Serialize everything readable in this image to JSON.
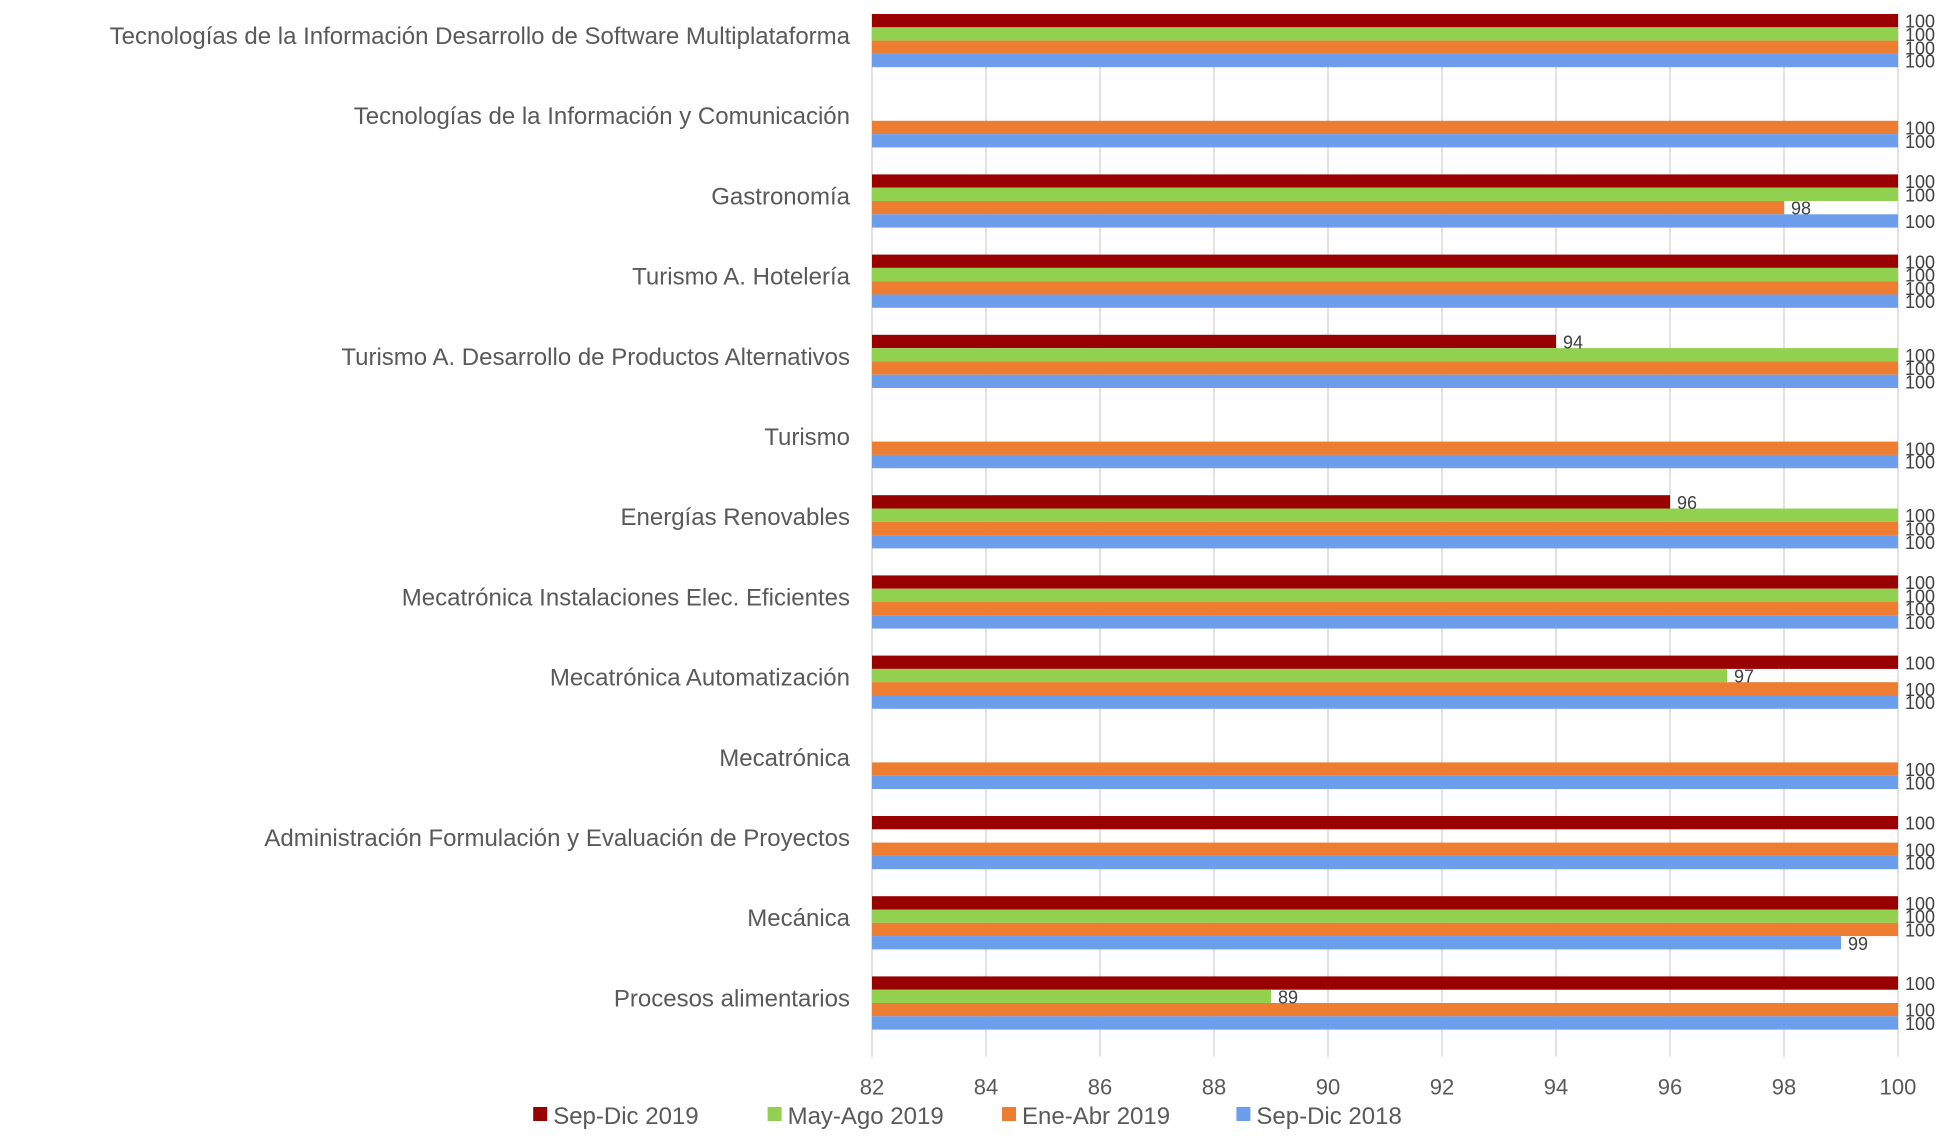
{
  "chart_data": {
    "type": "bar",
    "orientation": "horizontal",
    "categories": [
      "Tecnologías de la Información  Desarrollo de Software Multiplataforma",
      "Tecnologías de la Información y Comunicación",
      "Gastronomía",
      "Turismo A. Hotelería",
      "Turismo A. Desarrollo de Productos Alternativos",
      "Turismo",
      "Energías Renovables",
      "Mecatrónica Instalaciones Elec. Eficientes",
      "Mecatrónica Automatización",
      "Mecatrónica",
      "Administración Formulación y Evaluación de Proyectos",
      "Mecánica",
      "Procesos alimentarios"
    ],
    "series": [
      {
        "name": "Sep-Dic 2019",
        "color": "#990000",
        "values": [
          100,
          null,
          100,
          100,
          94,
          null,
          96,
          100,
          100,
          null,
          100,
          100,
          100
        ]
      },
      {
        "name": "May-Ago 2019",
        "color": "#92d050",
        "values": [
          100,
          null,
          100,
          100,
          100,
          null,
          100,
          100,
          97,
          null,
          null,
          100,
          89
        ]
      },
      {
        "name": "Ene-Abr 2019",
        "color": "#ed7d31",
        "values": [
          100,
          100,
          98,
          100,
          100,
          100,
          100,
          100,
          100,
          100,
          100,
          100,
          100
        ]
      },
      {
        "name": "Sep-Dic 2018",
        "color": "#6d9eeb",
        "values": [
          100,
          100,
          100,
          100,
          100,
          100,
          100,
          100,
          100,
          100,
          100,
          99,
          100
        ]
      }
    ],
    "xlim": [
      82,
      100
    ],
    "xticks": [
      82,
      84,
      86,
      88,
      90,
      92,
      94,
      96,
      98,
      100
    ],
    "grid": "vertical",
    "legend": "bottom",
    "title": "",
    "xlabel": "",
    "ylabel": ""
  }
}
